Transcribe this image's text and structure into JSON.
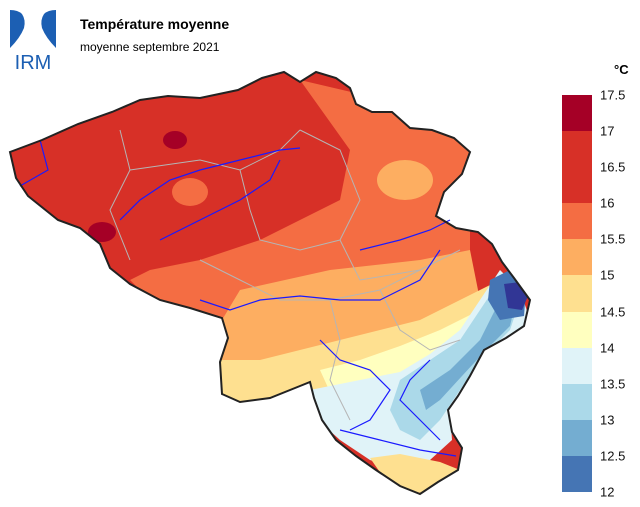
{
  "header": {
    "logo_text": "IRM",
    "title": "Température moyenne",
    "subtitle": "moyenne septembre 2021"
  },
  "legend": {
    "unit": "°C",
    "labels": [
      "17.5",
      "17",
      "16.5",
      "16",
      "15.5",
      "15",
      "14.5",
      "14",
      "13.5",
      "13",
      "12.5",
      "12"
    ],
    "colors": [
      "#a50026",
      "#d73027",
      "#d73027",
      "#f46d43",
      "#fdae61",
      "#fee090",
      "#ffffbf",
      "#e0f3f8",
      "#abd9e9",
      "#74add1",
      "#4575b4",
      "#313695"
    ]
  },
  "map": {
    "colors": {
      "hot": "#a50026",
      "red": "#d73027",
      "orange": "#f46d43",
      "light_orange": "#fdae61",
      "pale_yellow": "#fee090",
      "cream": "#ffffbf",
      "pale_blue": "#e0f3f8",
      "light_blue": "#abd9e9",
      "mid_blue": "#74add1",
      "blue": "#4575b4",
      "dark_blue": "#313695",
      "rivers": "#1a1aff",
      "borders": "#b5b5b5",
      "outline": "#222222"
    }
  }
}
